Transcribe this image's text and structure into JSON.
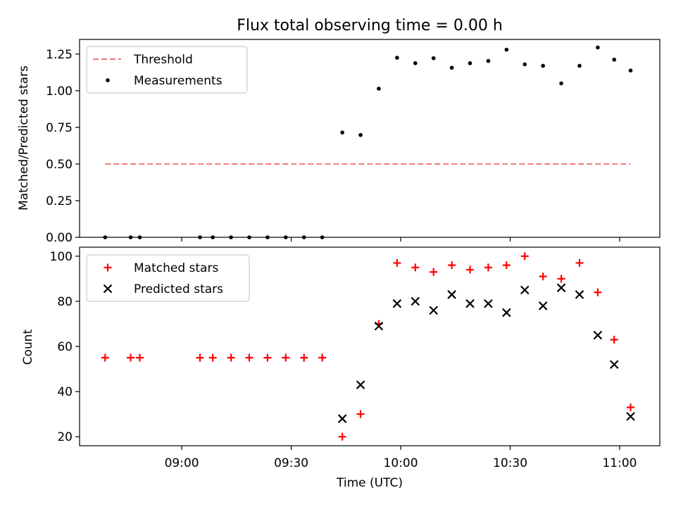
{
  "chart_data": [
    {
      "type": "scatter",
      "title": "Flux total observing time = 0.00 h",
      "xlabel": "",
      "ylabel": "Matched/Predicted stars",
      "ylim": [
        0,
        1.35
      ],
      "yticks": [
        0.0,
        0.25,
        0.5,
        0.75,
        1.0,
        1.25
      ],
      "ytick_labels": [
        "0.00",
        "0.25",
        "0.50",
        "0.75",
        "1.00",
        "1.25"
      ],
      "xlim_min": [
        512,
        671
      ],
      "xticks_min": [
        540,
        570,
        600,
        630,
        660
      ],
      "xtick_labels": [
        "",
        "",
        "",
        "",
        ""
      ],
      "legend_position": "top-left",
      "series": [
        {
          "name": "Threshold",
          "style": "dashed-line",
          "color": "#f08080",
          "x": [
            519,
            663
          ],
          "y": [
            0.5,
            0.5
          ]
        },
        {
          "name": "Measurements",
          "style": "dot",
          "color": "#000000",
          "x": [
            519,
            526,
            528.5,
            545,
            548.5,
            553.5,
            558.5,
            563.5,
            568.5,
            573.5,
            578.5,
            584,
            589,
            594,
            599,
            604,
            609,
            614,
            619,
            624,
            629,
            634,
            639,
            644,
            649,
            654,
            658.5,
            663
          ],
          "y": [
            0,
            0,
            0,
            0,
            0,
            0,
            0,
            0,
            0,
            0,
            0,
            0.715,
            0.698,
            1.014,
            1.225,
            1.188,
            1.222,
            1.157,
            1.188,
            1.203,
            1.28,
            1.18,
            1.17,
            1.05,
            1.17,
            1.295,
            1.212,
            1.138
          ]
        }
      ]
    },
    {
      "type": "scatter",
      "title": "",
      "xlabel": "Time (UTC)",
      "ylabel": "Count",
      "ylim": [
        16,
        104
      ],
      "yticks": [
        20,
        40,
        60,
        80,
        100
      ],
      "ytick_labels": [
        "20",
        "40",
        "60",
        "80",
        "100"
      ],
      "xlim_min": [
        512,
        671
      ],
      "xticks_min": [
        540,
        570,
        600,
        630,
        660
      ],
      "xtick_labels": [
        "09:00",
        "09:30",
        "10:00",
        "10:30",
        "11:00"
      ],
      "legend_position": "top-left",
      "series": [
        {
          "name": "Matched stars",
          "style": "plus",
          "color": "#ff0000",
          "x": [
            519,
            526,
            528.5,
            545,
            548.5,
            553.5,
            558.5,
            563.5,
            568.5,
            573.5,
            578.5,
            584,
            589,
            594,
            599,
            604,
            609,
            614,
            619,
            624,
            629,
            634,
            639,
            644,
            649,
            654,
            658.5,
            663
          ],
          "y": [
            55,
            55,
            55,
            55,
            55,
            55,
            55,
            55,
            55,
            55,
            55,
            20,
            30,
            70,
            97,
            95,
            93,
            96,
            94,
            95,
            96,
            100,
            91,
            90,
            97,
            84,
            63,
            33
          ]
        },
        {
          "name": "Predicted stars",
          "style": "x",
          "color": "#000000",
          "x": [
            584,
            589,
            594,
            599,
            604,
            609,
            614,
            619,
            624,
            629,
            634,
            639,
            644,
            649,
            654,
            658.5,
            663
          ],
          "y": [
            28,
            43,
            69,
            79,
            80,
            76,
            83,
            79,
            79,
            75,
            85,
            78,
            86,
            83,
            65,
            52,
            29
          ]
        }
      ]
    }
  ]
}
